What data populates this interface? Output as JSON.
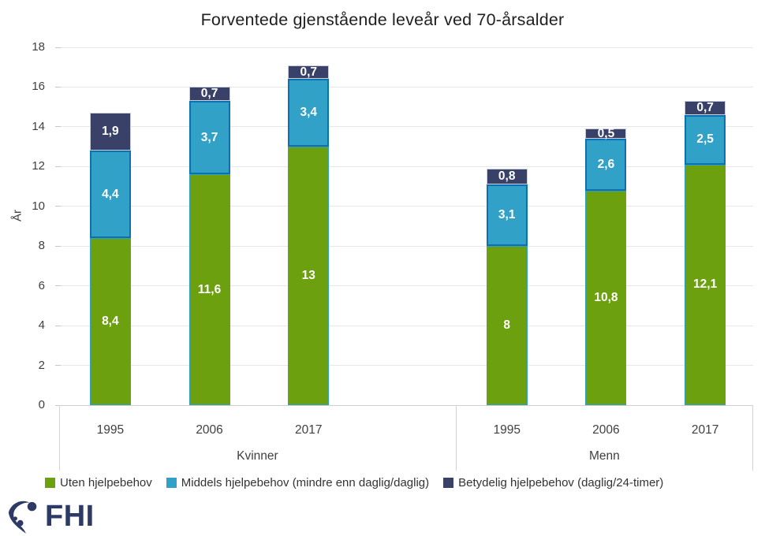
{
  "chart_data": {
    "type": "bar",
    "stacked": true,
    "title": "Forventede gjenstående leveår ved 70-årsalder",
    "ylabel": "År",
    "ylim": [
      0,
      18
    ],
    "ytick_step": 2,
    "yticks": [
      0,
      2,
      4,
      6,
      8,
      10,
      12,
      14,
      16,
      18
    ],
    "grid": true,
    "legend_position": "bottom",
    "groups": [
      {
        "label": "Kvinner",
        "categories": [
          "1995",
          "2006",
          "2017"
        ]
      },
      {
        "label": "Menn",
        "categories": [
          "1995",
          "2006",
          "2017"
        ]
      }
    ],
    "series": [
      {
        "name": "Uten hjelpebehov",
        "color": "#6da00f",
        "border_color": "#2f9fc4",
        "values": [
          8.4,
          11.6,
          13,
          8,
          10.8,
          12.1
        ],
        "value_labels": [
          "8,4",
          "11,6",
          "13",
          "8",
          "10,8",
          "12,1"
        ]
      },
      {
        "name": "Middels hjelpebehov (mindre enn daglig/daglig)",
        "color": "#31a1c7",
        "border_color": "#0d71b0",
        "values": [
          4.4,
          3.7,
          3.4,
          3.1,
          2.6,
          2.5
        ],
        "value_labels": [
          "4,4",
          "3,7",
          "3,4",
          "3,1",
          "2,6",
          "2,5"
        ]
      },
      {
        "name": "Betydelig hjelpebehov (daglig/24-timer)",
        "color": "#3a4168",
        "border_color": "#c9cedb",
        "values": [
          1.9,
          0.7,
          0.7,
          0.8,
          0.5,
          0.7
        ],
        "value_labels": [
          "1,9",
          "0,7",
          "0,7",
          "0,8",
          "0,5",
          "0,7"
        ]
      }
    ],
    "totals": [
      14.7,
      16.0,
      17.1,
      11.9,
      13.9,
      15.3
    ]
  },
  "logo": {
    "text": "FHI",
    "color": "#2e3a66",
    "icon": "fhi-figure-icon"
  },
  "colors": {
    "grid": "#e7e7e7",
    "axis": "#cfcfcf",
    "tick_text": "#404040",
    "value_label_text": "#ffffff",
    "background": "#ffffff"
  }
}
